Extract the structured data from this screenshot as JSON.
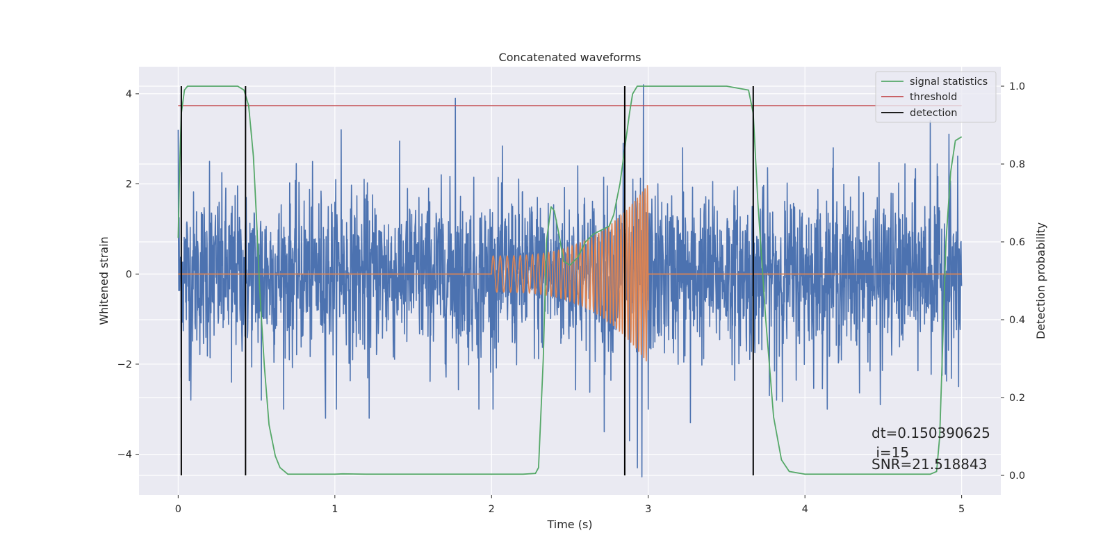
{
  "chart_data": {
    "type": "line",
    "title": "Concatenated waveforms",
    "xlabel": "Time (s)",
    "ylabel": "Whitened strain",
    "y2label": "Detection probability",
    "xlim": [
      -0.25,
      5.25
    ],
    "ylim": [
      -4.9,
      4.6
    ],
    "y2lim": [
      -0.05,
      1.05
    ],
    "x_ticks": [
      0,
      1,
      2,
      3,
      4,
      5
    ],
    "y_ticks": [
      -4,
      -2,
      0,
      2,
      4
    ],
    "y_tick_labels": [
      "−4",
      "−2",
      "0",
      "2",
      "4"
    ],
    "y2_ticks": [
      0.0,
      0.2,
      0.4,
      0.6,
      0.8,
      1.0
    ],
    "y2_tick_labels": [
      "0.0",
      "0.2",
      "0.4",
      "0.6",
      "0.8",
      "1.0"
    ],
    "grid": true,
    "legend_position": "top-right",
    "colors": {
      "strain": "#4c72b0",
      "injection": "#dd8452",
      "signal": "#55a868",
      "threshold": "#c44e52",
      "detection": "#000000",
      "background": "#eaeaf2",
      "grid": "#ffffff"
    },
    "series": [
      {
        "name": "",
        "kind": "whitened-strain-noise",
        "axis": "left",
        "x_range": [
          0,
          5
        ],
        "typical_amplitude": 0.9,
        "extremes": [
          {
            "x": 0.0,
            "y": 3.2
          },
          {
            "x": 0.02,
            "y": -2.3
          },
          {
            "x": 0.08,
            "y": -2.8
          },
          {
            "x": 0.2,
            "y": 2.5
          },
          {
            "x": 0.34,
            "y": -2.4
          },
          {
            "x": 0.53,
            "y": -2.8
          },
          {
            "x": 0.94,
            "y": -3.2
          },
          {
            "x": 1.04,
            "y": 3.2
          },
          {
            "x": 1.22,
            "y": -3.2
          },
          {
            "x": 1.77,
            "y": 3.9
          },
          {
            "x": 1.92,
            "y": -3.0
          },
          {
            "x": 2.55,
            "y": 2.4
          },
          {
            "x": 2.72,
            "y": -3.5
          },
          {
            "x": 2.84,
            "y": 2.9
          },
          {
            "x": 2.88,
            "y": -3.7
          },
          {
            "x": 2.93,
            "y": -4.3
          },
          {
            "x": 2.96,
            "y": -4.5
          },
          {
            "x": 2.97,
            "y": 4.2
          },
          {
            "x": 3.0,
            "y": -3.0
          },
          {
            "x": 3.27,
            "y": -3.3
          },
          {
            "x": 3.22,
            "y": 2.8
          },
          {
            "x": 3.82,
            "y": -2.8
          },
          {
            "x": 4.18,
            "y": 2.8
          },
          {
            "x": 4.48,
            "y": -2.9
          },
          {
            "x": 4.8,
            "y": 3.4
          },
          {
            "x": 4.92,
            "y": 3.1
          },
          {
            "x": 4.98,
            "y": -2.5
          }
        ]
      },
      {
        "name": "",
        "kind": "injected-chirp",
        "axis": "left",
        "x_range": [
          2.0,
          3.0
        ],
        "start_amplitude": 0.4,
        "end_amplitude": 2.0,
        "start_frequency_hz": 22,
        "end_frequency_hz": 65,
        "baseline": 0
      },
      {
        "name": "signal statistics",
        "axis": "right",
        "x": [
          0.0,
          0.01,
          0.02,
          0.04,
          0.06,
          0.1,
          0.2,
          0.38,
          0.42,
          0.45,
          0.48,
          0.5,
          0.52,
          0.55,
          0.58,
          0.62,
          0.65,
          0.7,
          1.0,
          1.05,
          1.2,
          2.0,
          2.2,
          2.28,
          2.3,
          2.33,
          2.35,
          2.38,
          2.4,
          2.43,
          2.46,
          2.5,
          2.55,
          2.6,
          2.65,
          2.7,
          2.75,
          2.78,
          2.82,
          2.85,
          2.88,
          2.9,
          2.93,
          3.0,
          3.5,
          3.64,
          3.67,
          3.7,
          3.75,
          3.8,
          3.85,
          3.9,
          4.0,
          4.3,
          4.8,
          4.84,
          4.86,
          4.9,
          4.93,
          4.96,
          5.0
        ],
        "values": [
          0.61,
          0.8,
          0.93,
          0.99,
          1.0,
          1.0,
          1.0,
          1.0,
          0.99,
          0.95,
          0.82,
          0.66,
          0.48,
          0.28,
          0.13,
          0.05,
          0.02,
          0.003,
          0.003,
          0.004,
          0.003,
          0.003,
          0.003,
          0.005,
          0.02,
          0.3,
          0.6,
          0.69,
          0.68,
          0.62,
          0.55,
          0.54,
          0.56,
          0.6,
          0.62,
          0.63,
          0.64,
          0.67,
          0.75,
          0.84,
          0.93,
          0.98,
          1.0,
          1.0,
          1.0,
          0.99,
          0.93,
          0.7,
          0.4,
          0.15,
          0.04,
          0.01,
          0.003,
          0.003,
          0.003,
          0.01,
          0.1,
          0.6,
          0.78,
          0.86,
          0.87
        ]
      },
      {
        "name": "threshold",
        "axis": "right",
        "x": [
          0,
          5
        ],
        "values": [
          0.95,
          0.95
        ]
      },
      {
        "name": "detection",
        "axis": "right",
        "kind": "vertical-lines",
        "x": [
          0.02,
          0.43,
          2.85,
          3.67
        ],
        "y_range": [
          0.0,
          1.0
        ]
      }
    ],
    "annotations": [
      {
        "text": "dt=0.150390625"
      },
      {
        "text": " i=15"
      },
      {
        "text": "SNR=21.518843"
      }
    ]
  }
}
